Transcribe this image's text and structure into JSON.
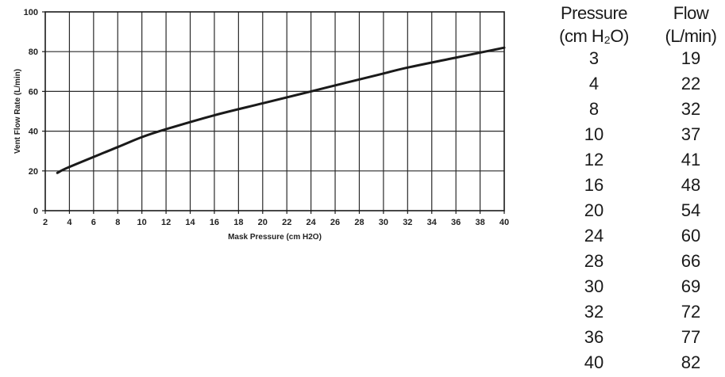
{
  "chart_data": {
    "type": "line",
    "xlabel": "Mask Pressure (cm H2O)",
    "ylabel": "Vent Flow Rate (L/min)",
    "xlim": [
      2,
      40
    ],
    "ylim": [
      0,
      100
    ],
    "x_ticks": [
      2,
      4,
      6,
      8,
      10,
      12,
      14,
      16,
      18,
      20,
      22,
      24,
      26,
      28,
      30,
      32,
      34,
      36,
      38,
      40
    ],
    "y_ticks": [
      0,
      20,
      40,
      60,
      80,
      100
    ],
    "grid": true,
    "series": [
      {
        "x": [
          3,
          4,
          8,
          10,
          12,
          16,
          20,
          24,
          28,
          30,
          32,
          36,
          40
        ],
        "y": [
          19,
          22,
          32,
          37,
          41,
          48,
          54,
          60,
          66,
          69,
          72,
          77,
          82
        ],
        "color": "#1a1a1a"
      }
    ]
  },
  "table": {
    "header_pressure_line1": "Pressure",
    "header_pressure_line2": "(cm H₂O)",
    "header_flow_line1": "Flow",
    "header_flow_line2": "(L/min)",
    "rows": [
      {
        "pressure": "3",
        "flow": "19"
      },
      {
        "pressure": "4",
        "flow": "22"
      },
      {
        "pressure": "8",
        "flow": "32"
      },
      {
        "pressure": "10",
        "flow": "37"
      },
      {
        "pressure": "12",
        "flow": "41"
      },
      {
        "pressure": "16",
        "flow": "48"
      },
      {
        "pressure": "20",
        "flow": "54"
      },
      {
        "pressure": "24",
        "flow": "60"
      },
      {
        "pressure": "28",
        "flow": "66"
      },
      {
        "pressure": "30",
        "flow": "69"
      },
      {
        "pressure": "32",
        "flow": "72"
      },
      {
        "pressure": "36",
        "flow": "77"
      },
      {
        "pressure": "40",
        "flow": "82"
      }
    ]
  }
}
